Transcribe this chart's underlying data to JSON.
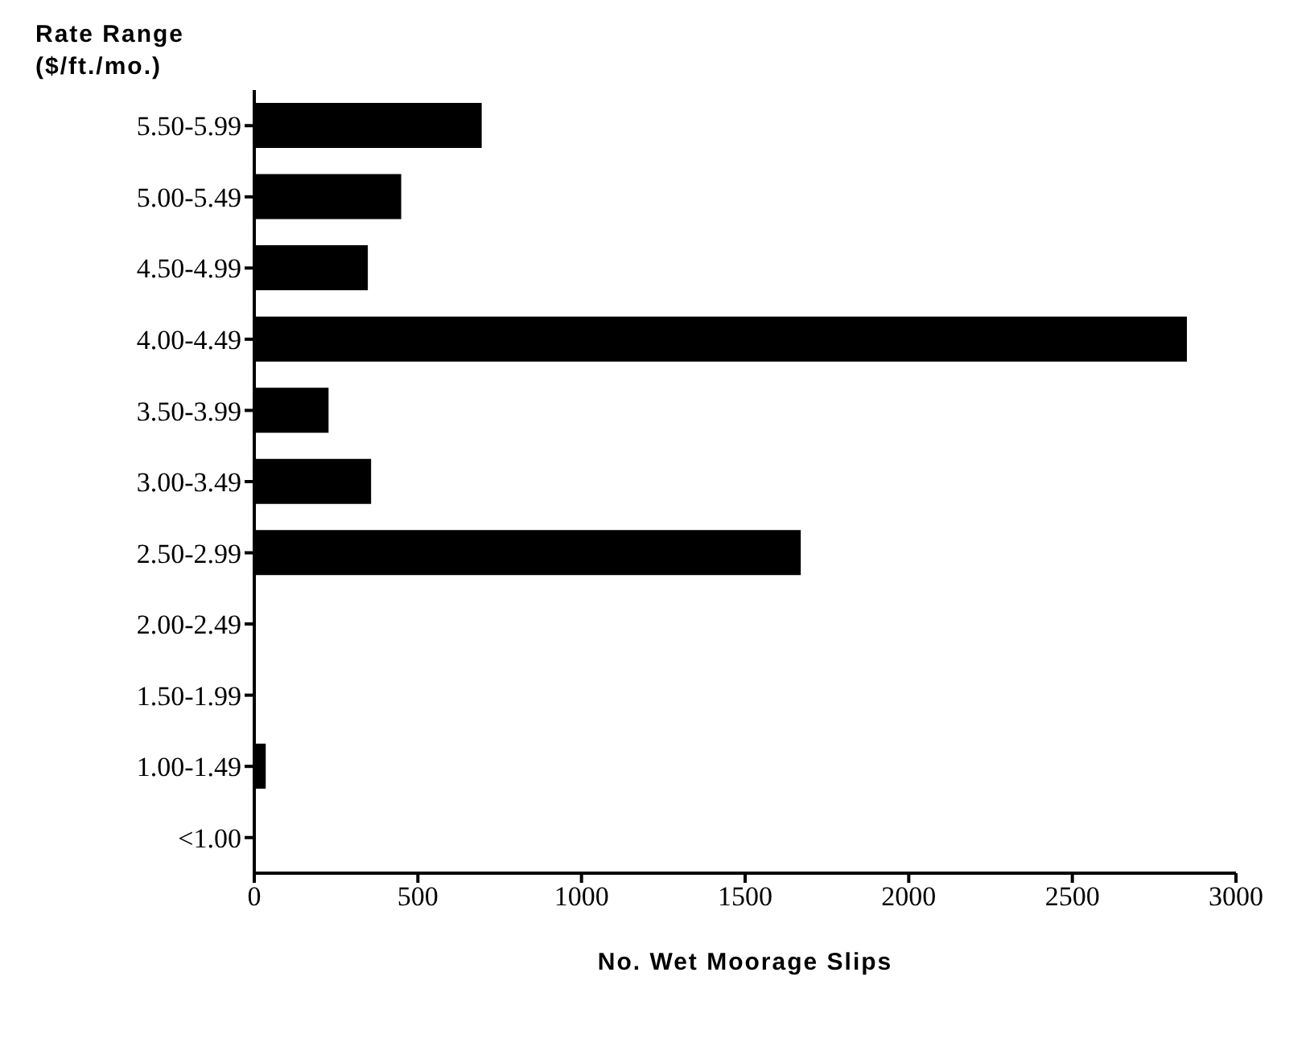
{
  "chart_data": {
    "type": "bar",
    "orientation": "horizontal",
    "ylabel": "Rate Range ($/ft./mo.)",
    "xlabel": "No. Wet Moorage Slips",
    "categories": [
      "5.50-5.99",
      "5.00-5.49",
      "4.50-4.99",
      "4.00-4.49",
      "3.50-3.99",
      "3.00-3.49",
      "2.50-2.99",
      "2.00-2.49",
      "1.50-1.99",
      "1.00-1.49",
      "<1.00"
    ],
    "values": [
      695,
      449,
      347,
      2850,
      227,
      357,
      1670,
      0,
      0,
      35,
      0
    ],
    "color": "#000000",
    "xlim": [
      0,
      3000
    ],
    "xticks": [
      0,
      500,
      1000,
      1500,
      2000,
      2500,
      3000
    ],
    "grid": false,
    "legend": false
  }
}
